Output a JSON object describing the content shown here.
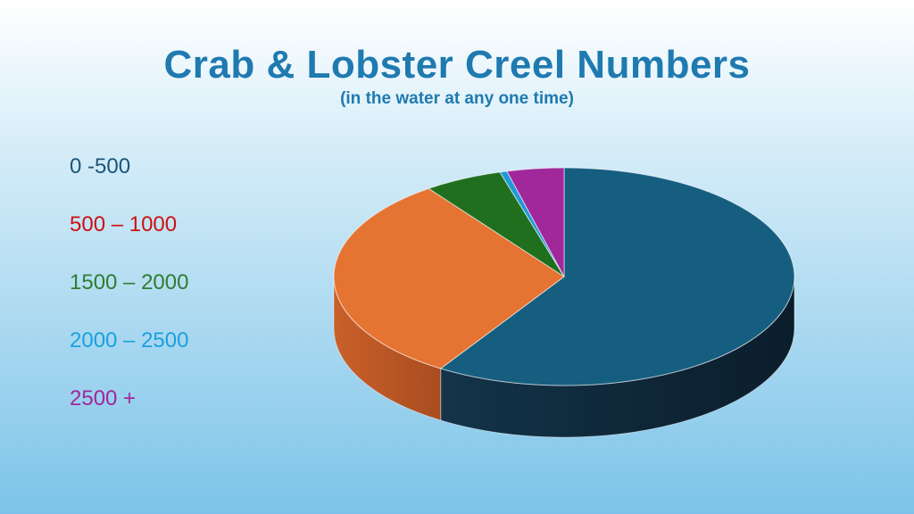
{
  "title": "Crab & Lobster Creel Numbers",
  "subtitle": "(in the water at any one time)",
  "colors": {
    "title": "#1f7ab0",
    "background_top": "#ffffff",
    "background_bottom": "#7cc4e9"
  },
  "chart_data": {
    "type": "pie",
    "style": "3d",
    "title": "Crab & Lobster Creel Numbers",
    "subtitle": "(in the water at any one time)",
    "legend_position": "left",
    "categories": [
      "0 -500",
      "500 – 1000",
      "1500 – 2000",
      "2000 – 2500",
      "2500 +"
    ],
    "values": [
      59,
      31,
      5.5,
      0.5,
      4
    ],
    "unit": "percent (estimated)",
    "colors": [
      "#165e80",
      "#e57332",
      "#1f6f1f",
      "#1f9ad6",
      "#a0289b"
    ],
    "legend_label_colors": [
      "#1c5577",
      "#cc1111",
      "#2e7d32",
      "#1aa0e0",
      "#a0289b"
    ]
  }
}
